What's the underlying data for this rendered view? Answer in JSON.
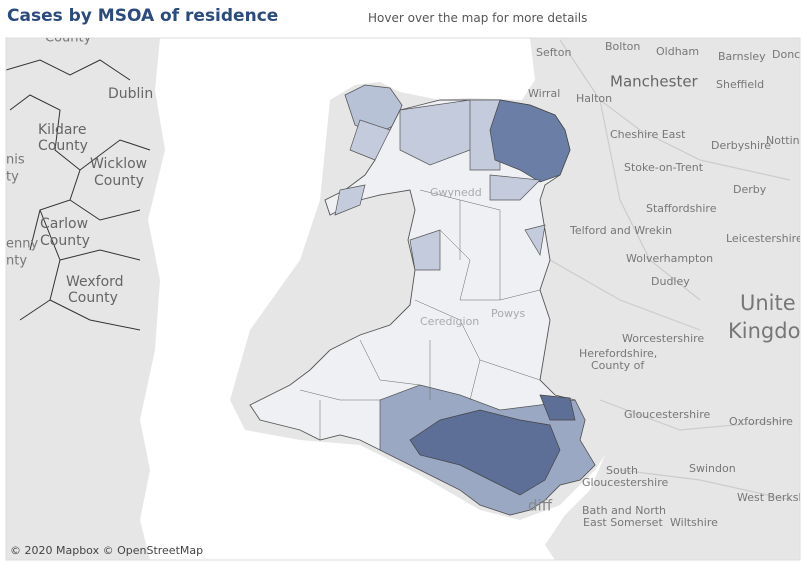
{
  "header": {
    "title": "Cases by MSOA of residence",
    "hint": "Hover over the map for more details"
  },
  "map": {
    "labels": [
      "County",
      "Dublin",
      "Kildare",
      "County",
      "Wicklow",
      "County",
      "Carlow",
      "County",
      "Wexford",
      "County",
      "nis",
      "ty",
      "enny",
      "nty",
      "Sefton",
      "Bolton",
      "Oldham",
      "Barnsley",
      "Donca",
      "Wirral",
      "Manchester",
      "Halton",
      "Sheffield",
      "Cheshire East",
      "Derbyshire",
      "Notting",
      "Stoke-on-Trent",
      "Derby",
      "Staffordshire",
      "Telford and Wrekin",
      "Leicestershire",
      "Wolverhampton",
      "Dudley",
      "Unite",
      "Kingdo",
      "Worcestershire",
      "Herefordshire,",
      "County of",
      "Gloucestershire",
      "Oxfordshire",
      "Swindon",
      "South",
      "Gloucestershire",
      "West Berksh",
      "Bath and North",
      "East Somerset",
      "Wiltshire",
      "diff",
      "Gwynedd",
      "Powys",
      "Ceredigion"
    ],
    "attribution": "© 2020 Mapbox © OpenStreetMap"
  }
}
